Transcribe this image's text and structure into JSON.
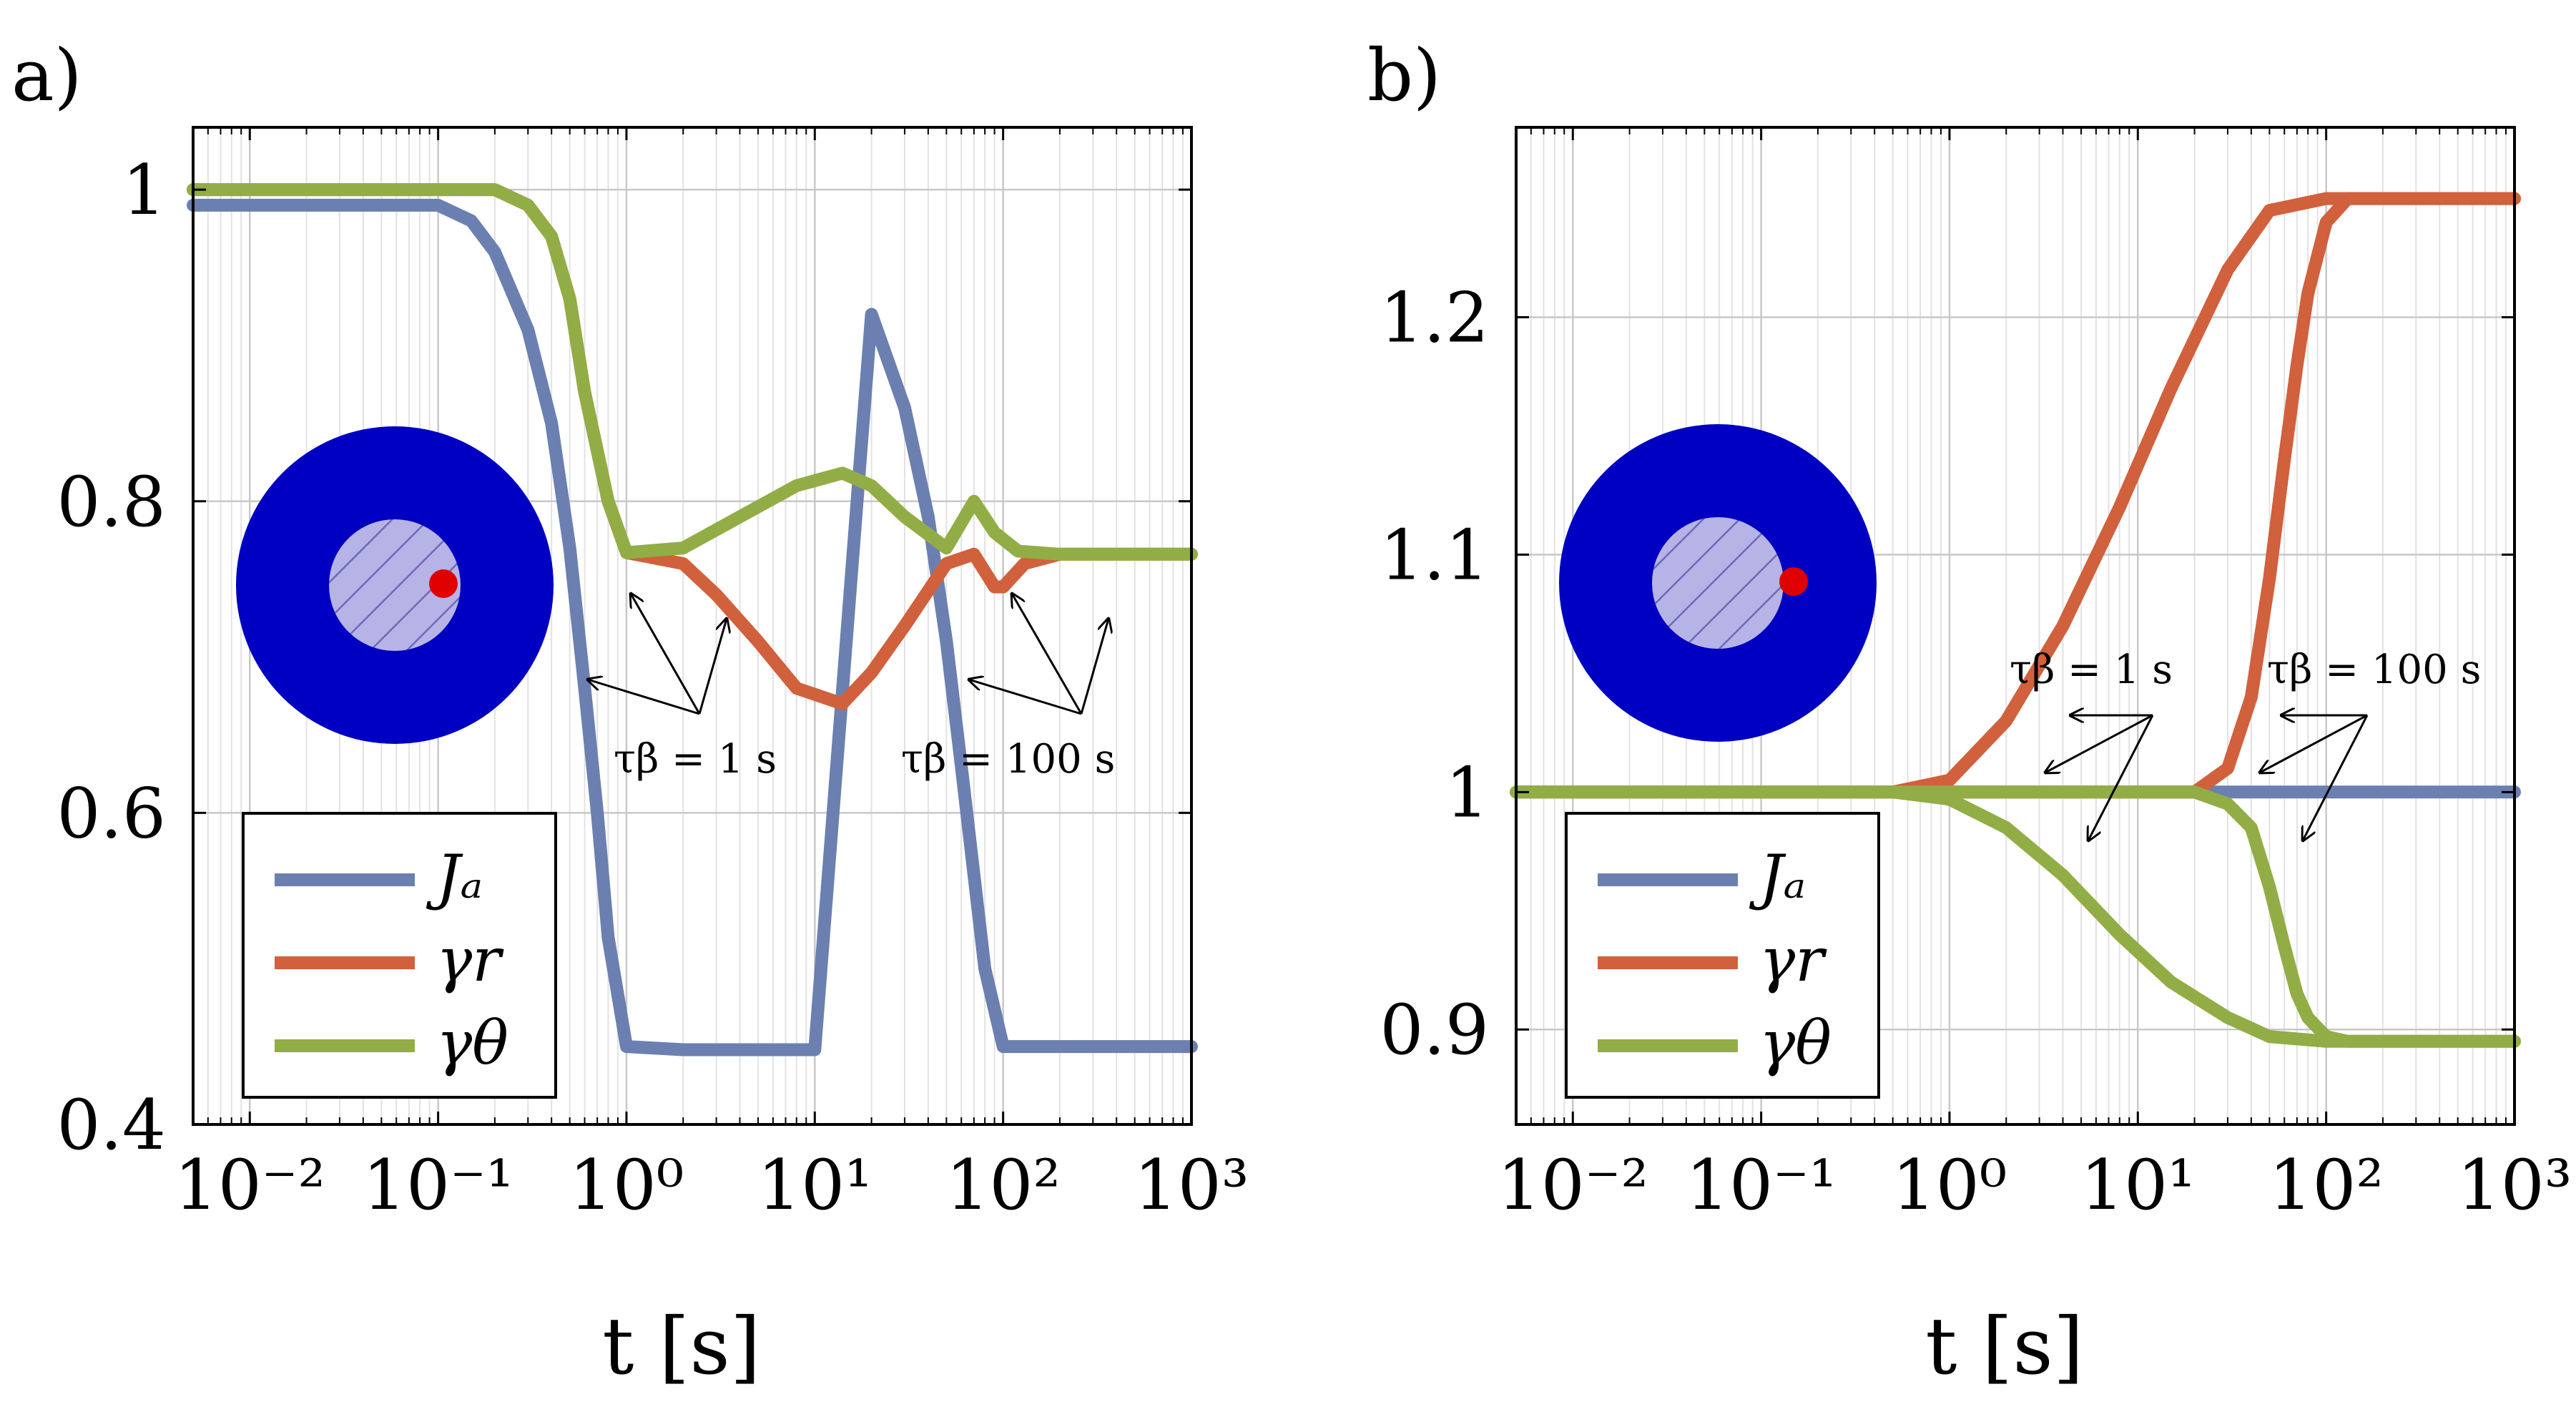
{
  "chart_data": [
    {
      "type": "line",
      "panel": "a)",
      "xscale": "log",
      "xlim": [
        0.005,
        1000
      ],
      "ylim": [
        0.4,
        1.04
      ],
      "xlabel": "t [s]",
      "ylabel": "",
      "grid": true,
      "legend_position": "bottom-left",
      "x_ticks": [
        0.01,
        0.1,
        1,
        10,
        100,
        1000
      ],
      "x_tick_labels": [
        "10⁻²",
        "10⁻¹",
        "10⁰",
        "10¹",
        "10²",
        "10³"
      ],
      "y_ticks": [
        0.4,
        0.6,
        0.8,
        1
      ],
      "y_tick_labels": [
        "0.4",
        "0.6",
        "0.8",
        "1"
      ],
      "series": [
        {
          "name": "J_a",
          "legend_label": "Jₐ",
          "color": "#6b80b0",
          "x": [
            0.005,
            0.1,
            0.15,
            0.2,
            0.3,
            0.4,
            0.5,
            0.6,
            0.7,
            0.8,
            1.0,
            2,
            5,
            10,
            20,
            30,
            40,
            50,
            60,
            70,
            80,
            100,
            1000
          ],
          "y": [
            0.99,
            0.99,
            0.98,
            0.96,
            0.91,
            0.85,
            0.77,
            0.68,
            0.6,
            0.52,
            0.45,
            0.448,
            0.448,
            0.448,
            0.92,
            0.86,
            0.79,
            0.71,
            0.63,
            0.56,
            0.5,
            0.45,
            0.45
          ]
        },
        {
          "name": "gamma_r",
          "legend_label": "γr",
          "color": "#d1603d",
          "x": [
            0.005,
            0.2,
            0.3,
            0.4,
            0.5,
            0.6,
            0.8,
            1.0,
            2,
            3,
            5,
            8,
            14,
            20,
            30,
            50,
            70,
            90,
            100,
            130,
            200,
            300,
            1000
          ],
          "y": [
            1.0,
            1.0,
            0.99,
            0.97,
            0.93,
            0.87,
            0.8,
            0.767,
            0.76,
            0.74,
            0.71,
            0.68,
            0.67,
            0.69,
            0.72,
            0.76,
            0.766,
            0.745,
            0.745,
            0.76,
            0.766,
            0.766,
            0.766
          ]
        },
        {
          "name": "gamma_theta",
          "legend_label": "γθ",
          "color": "#92ad45",
          "x": [
            0.005,
            0.2,
            0.3,
            0.4,
            0.5,
            0.6,
            0.8,
            1.0,
            2,
            4,
            8,
            14,
            20,
            30,
            50,
            70,
            90,
            120,
            200,
            1000
          ],
          "y": [
            1.0,
            1.0,
            0.99,
            0.97,
            0.93,
            0.87,
            0.8,
            0.767,
            0.77,
            0.79,
            0.81,
            0.818,
            0.81,
            0.79,
            0.77,
            0.8,
            0.78,
            0.768,
            0.766,
            0.766
          ]
        }
      ],
      "annotations": [
        {
          "text": "τβ = 1 s"
        },
        {
          "text": "τβ = 100 s"
        }
      ]
    },
    {
      "type": "line",
      "panel": "b)",
      "xscale": "log",
      "xlim": [
        0.005,
        1000
      ],
      "ylim": [
        0.86,
        1.28
      ],
      "xlabel": "t [s]",
      "ylabel": "",
      "grid": true,
      "legend_position": "bottom-left",
      "x_ticks": [
        0.01,
        0.1,
        1,
        10,
        100,
        1000
      ],
      "x_tick_labels": [
        "10⁻²",
        "10⁻¹",
        "10⁰",
        "10¹",
        "10²",
        "10³"
      ],
      "y_ticks": [
        0.9,
        1,
        1.1,
        1.2
      ],
      "y_tick_labels": [
        "0.9",
        "1",
        "1.1",
        "1.2"
      ],
      "series": [
        {
          "name": "J_a",
          "legend_label": "Jₐ",
          "color": "#6b80b0",
          "x": [
            0.005,
            1000
          ],
          "y": [
            1.0,
            1.0
          ]
        },
        {
          "name": "gamma_r_fast",
          "legend_label": "γr",
          "color": "#d1603d",
          "x": [
            0.5,
            1,
            2,
            4,
            8,
            15,
            30,
            50,
            100,
            200,
            1000
          ],
          "y": [
            1.0,
            1.005,
            1.03,
            1.07,
            1.12,
            1.17,
            1.22,
            1.245,
            1.25,
            1.25,
            1.25
          ]
        },
        {
          "name": "gamma_r_slow",
          "legend_label": "γr",
          "color": "#d1603d",
          "x": [
            0.005,
            20,
            30,
            40,
            50,
            60,
            70,
            80,
            100,
            130,
            200,
            1000
          ],
          "y": [
            1.0,
            1.0,
            1.01,
            1.04,
            1.09,
            1.14,
            1.18,
            1.21,
            1.24,
            1.25,
            1.25,
            1.25
          ]
        },
        {
          "name": "gamma_theta_fast",
          "legend_label": "γθ",
          "color": "#92ad45",
          "x": [
            0.5,
            1,
            2,
            4,
            8,
            15,
            30,
            50,
            100,
            200,
            1000
          ],
          "y": [
            1.0,
            0.997,
            0.985,
            0.965,
            0.94,
            0.92,
            0.905,
            0.897,
            0.895,
            0.895,
            0.895
          ]
        },
        {
          "name": "gamma_theta_slow",
          "legend_label": "γθ",
          "color": "#92ad45",
          "x": [
            0.005,
            20,
            30,
            40,
            50,
            60,
            70,
            80,
            100,
            130,
            200,
            1000
          ],
          "y": [
            1.0,
            1.0,
            0.995,
            0.985,
            0.96,
            0.935,
            0.915,
            0.905,
            0.897,
            0.895,
            0.895,
            0.895
          ]
        }
      ],
      "annotations": [
        {
          "text": "τβ = 1 s"
        },
        {
          "text": "τβ = 100 s"
        }
      ]
    }
  ],
  "legend_series": [
    "J_a",
    "gamma_r",
    "gamma_theta"
  ]
}
